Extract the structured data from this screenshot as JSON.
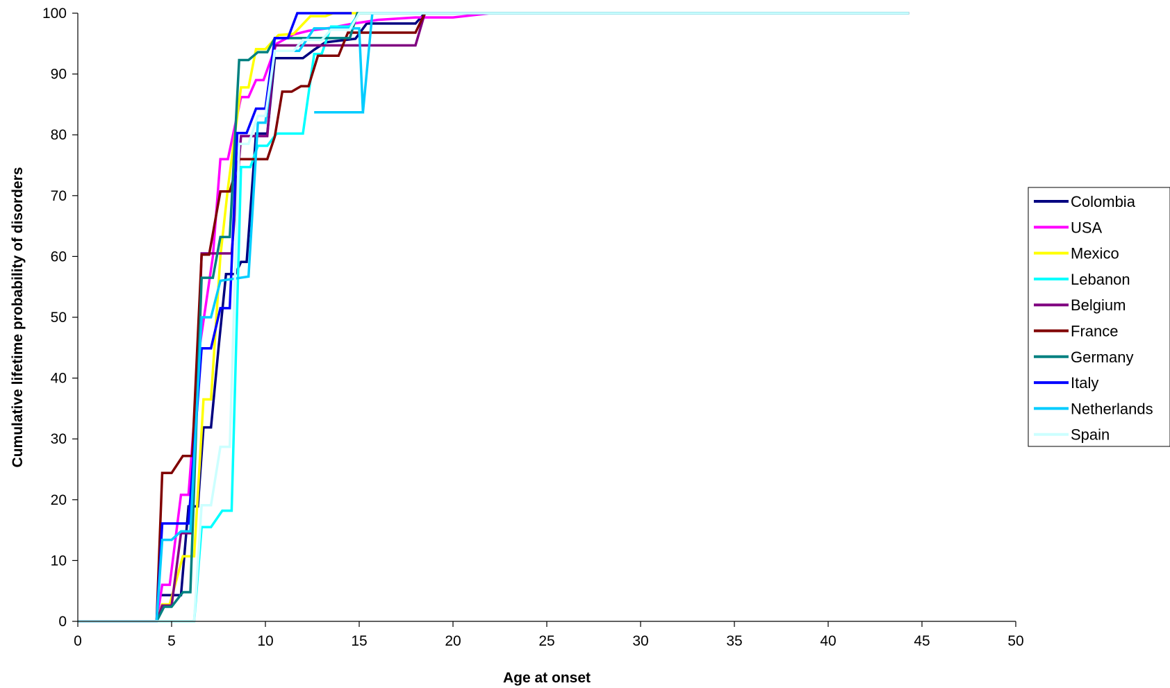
{
  "chart_data": {
    "type": "line",
    "title": "",
    "xlabel": "Age at onset",
    "ylabel": "Cumulative lifetime probability of disorders",
    "xlim": [
      0,
      50
    ],
    "ylim": [
      0,
      100
    ],
    "xticks": [
      0,
      5,
      10,
      15,
      20,
      25,
      30,
      35,
      40,
      45,
      50
    ],
    "yticks": [
      0,
      10,
      20,
      30,
      40,
      50,
      60,
      70,
      80,
      90,
      100
    ],
    "grid": false,
    "legend_position": "right",
    "step": true,
    "series": [
      {
        "name": "Colombia",
        "color": "#000080",
        "points": [
          [
            0,
            0
          ],
          [
            4.2,
            0
          ],
          [
            4.4,
            4.3
          ],
          [
            5.5,
            4.3
          ],
          [
            5.9,
            18.9
          ],
          [
            6.4,
            18.9
          ],
          [
            6.7,
            31.9
          ],
          [
            7.1,
            31.9
          ],
          [
            7.5,
            44.9
          ],
          [
            7.9,
            57.1
          ],
          [
            8.4,
            57.1
          ],
          [
            8.7,
            59.1
          ],
          [
            9.0,
            59.1
          ],
          [
            9.5,
            80.2
          ],
          [
            10.1,
            80.2
          ],
          [
            10.5,
            92.6
          ],
          [
            12.0,
            92.6
          ],
          [
            12.6,
            94.0
          ],
          [
            13.2,
            95.2
          ],
          [
            14.8,
            95.8
          ],
          [
            15.4,
            98.3
          ],
          [
            18.0,
            98.3
          ],
          [
            18.5,
            100
          ],
          [
            44.3,
            100
          ]
        ]
      },
      {
        "name": "USA",
        "color": "#FF00FF",
        "points": [
          [
            0,
            0
          ],
          [
            4.2,
            0
          ],
          [
            4.5,
            6.0
          ],
          [
            4.9,
            6.0
          ],
          [
            5.5,
            20.8
          ],
          [
            5.9,
            20.8
          ],
          [
            6.5,
            45.2
          ],
          [
            7.2,
            60.0
          ],
          [
            7.6,
            76.0
          ],
          [
            8.0,
            76.0
          ],
          [
            8.7,
            86.2
          ],
          [
            9.1,
            86.2
          ],
          [
            9.5,
            89.0
          ],
          [
            9.9,
            89.0
          ],
          [
            10.6,
            95.0
          ],
          [
            11.5,
            96.5
          ],
          [
            12.3,
            97.1
          ],
          [
            13.5,
            97.6
          ],
          [
            14.5,
            98.2
          ],
          [
            16.0,
            98.9
          ],
          [
            18.0,
            99.3
          ],
          [
            20.0,
            99.3
          ],
          [
            22.0,
            100
          ],
          [
            44.3,
            100
          ]
        ]
      },
      {
        "name": "Mexico",
        "color": "#FFFF00",
        "points": [
          [
            0,
            0
          ],
          [
            4.2,
            0
          ],
          [
            4.5,
            2.8
          ],
          [
            4.9,
            2.8
          ],
          [
            5.6,
            10.7
          ],
          [
            6.2,
            10.7
          ],
          [
            6.7,
            36.5
          ],
          [
            7.1,
            36.5
          ],
          [
            7.6,
            60.0
          ],
          [
            8.0,
            71.2
          ],
          [
            8.7,
            87.8
          ],
          [
            9.1,
            87.8
          ],
          [
            9.5,
            94.1
          ],
          [
            10.0,
            94.1
          ],
          [
            10.7,
            96.4
          ],
          [
            11.5,
            96.6
          ],
          [
            12.4,
            99.5
          ],
          [
            13.2,
            99.5
          ],
          [
            13.6,
            100
          ],
          [
            44.3,
            100
          ]
        ]
      },
      {
        "name": "Lebanon",
        "color": "#00FFFF",
        "points": [
          [
            0,
            0
          ],
          [
            6.2,
            0
          ],
          [
            6.6,
            15.5
          ],
          [
            7.1,
            15.5
          ],
          [
            7.7,
            18.2
          ],
          [
            8.2,
            18.2
          ],
          [
            8.7,
            74.7
          ],
          [
            9.2,
            74.7
          ],
          [
            9.6,
            78.2
          ],
          [
            10.1,
            78.2
          ],
          [
            10.6,
            80.2
          ],
          [
            12.0,
            80.2
          ],
          [
            12.6,
            93.3
          ],
          [
            13.0,
            93.3
          ],
          [
            13.5,
            97.8
          ],
          [
            14.5,
            97.8
          ],
          [
            15.0,
            100
          ],
          [
            44.3,
            100
          ]
        ]
      },
      {
        "name": "Belgium",
        "color": "#800080",
        "points": [
          [
            0,
            0
          ],
          [
            4.2,
            0
          ],
          [
            4.5,
            2.6
          ],
          [
            5.0,
            2.6
          ],
          [
            5.5,
            14.5
          ],
          [
            6.1,
            14.5
          ],
          [
            6.6,
            60.5
          ],
          [
            7.7,
            60.5
          ],
          [
            8.2,
            60.5
          ],
          [
            8.7,
            79.8
          ],
          [
            9.2,
            79.8
          ],
          [
            9.5,
            79.8
          ],
          [
            10.1,
            79.8
          ],
          [
            10.5,
            94.7
          ],
          [
            18.0,
            94.7
          ],
          [
            18.5,
            100
          ],
          [
            44.3,
            100
          ]
        ]
      },
      {
        "name": "France",
        "color": "#800000",
        "points": [
          [
            0,
            0
          ],
          [
            4.2,
            0
          ],
          [
            4.5,
            24.4
          ],
          [
            5.0,
            24.4
          ],
          [
            5.6,
            27.2
          ],
          [
            6.1,
            27.2
          ],
          [
            6.6,
            60.3
          ],
          [
            7.0,
            60.3
          ],
          [
            7.6,
            70.7
          ],
          [
            8.1,
            70.7
          ],
          [
            8.6,
            76.0
          ],
          [
            9.6,
            76.0
          ],
          [
            10.1,
            76.0
          ],
          [
            10.5,
            79.7
          ],
          [
            10.9,
            87.1
          ],
          [
            11.4,
            87.1
          ],
          [
            11.9,
            88.0
          ],
          [
            12.3,
            88.0
          ],
          [
            12.8,
            93.0
          ],
          [
            13.9,
            93.0
          ],
          [
            14.4,
            96.8
          ],
          [
            18.0,
            96.8
          ],
          [
            18.5,
            100
          ],
          [
            44.3,
            100
          ]
        ]
      },
      {
        "name": "Germany",
        "color": "#008080",
        "points": [
          [
            0,
            0
          ],
          [
            4.2,
            0
          ],
          [
            4.6,
            2.4
          ],
          [
            5.0,
            2.4
          ],
          [
            5.6,
            4.8
          ],
          [
            6.0,
            4.8
          ],
          [
            6.6,
            56.5
          ],
          [
            7.2,
            56.5
          ],
          [
            7.6,
            63.2
          ],
          [
            8.1,
            63.2
          ],
          [
            8.6,
            92.3
          ],
          [
            9.1,
            92.3
          ],
          [
            9.6,
            93.6
          ],
          [
            10.1,
            93.6
          ],
          [
            10.5,
            95.9
          ],
          [
            14.5,
            95.9
          ],
          [
            14.9,
            100
          ],
          [
            44.3,
            100
          ]
        ]
      },
      {
        "name": "Italy",
        "color": "#0000FF",
        "points": [
          [
            0,
            0
          ],
          [
            4.2,
            0
          ],
          [
            4.5,
            16.1
          ],
          [
            5.9,
            16.1
          ],
          [
            6.6,
            44.9
          ],
          [
            7.1,
            44.9
          ],
          [
            7.6,
            51.5
          ],
          [
            8.1,
            51.5
          ],
          [
            8.5,
            80.3
          ],
          [
            9.0,
            80.3
          ],
          [
            9.5,
            84.3
          ],
          [
            10.0,
            84.3
          ],
          [
            10.5,
            95.9
          ],
          [
            11.2,
            95.9
          ],
          [
            11.7,
            100
          ],
          [
            14.6,
            100
          ]
        ]
      },
      {
        "name": "Netherlands",
        "color": "#00CCFF",
        "points": [
          [
            0,
            0
          ],
          [
            4.2,
            0
          ],
          [
            4.5,
            13.4
          ],
          [
            5.0,
            13.4
          ],
          [
            5.5,
            14.8
          ],
          [
            6.0,
            14.8
          ],
          [
            6.6,
            50.0
          ],
          [
            7.1,
            50.0
          ],
          [
            7.6,
            56.0
          ],
          [
            9.1,
            56.7
          ],
          [
            9.6,
            82.0
          ],
          [
            10.0,
            82.0
          ],
          [
            10.5,
            93.8
          ],
          [
            11.8,
            93.8
          ],
          [
            12.6,
            97.5
          ],
          [
            13.2,
            97.5
          ],
          [
            13.6,
            97.5
          ],
          [
            15.0,
            97.5
          ],
          [
            15.2,
            83.7
          ],
          [
            12.6,
            83.7
          ],
          [
            15.2,
            83.7
          ],
          [
            15.7,
            100
          ],
          [
            44.3,
            100
          ]
        ]
      },
      {
        "name": "Spain",
        "color": "#CCFFFF",
        "points": [
          [
            0,
            0
          ],
          [
            6.2,
            0
          ],
          [
            6.6,
            19.1
          ],
          [
            7.1,
            19.1
          ],
          [
            7.6,
            28.7
          ],
          [
            8.1,
            28.7
          ],
          [
            8.6,
            78.5
          ],
          [
            9.1,
            78.5
          ],
          [
            9.6,
            83.1
          ],
          [
            10.0,
            83.1
          ],
          [
            10.5,
            93.8
          ],
          [
            11.5,
            93.8
          ],
          [
            12.0,
            95.6
          ],
          [
            13.0,
            95.6
          ],
          [
            13.5,
            97.3
          ],
          [
            14.5,
            97.3
          ],
          [
            15.0,
            100
          ],
          [
            44.3,
            100
          ]
        ]
      }
    ]
  }
}
